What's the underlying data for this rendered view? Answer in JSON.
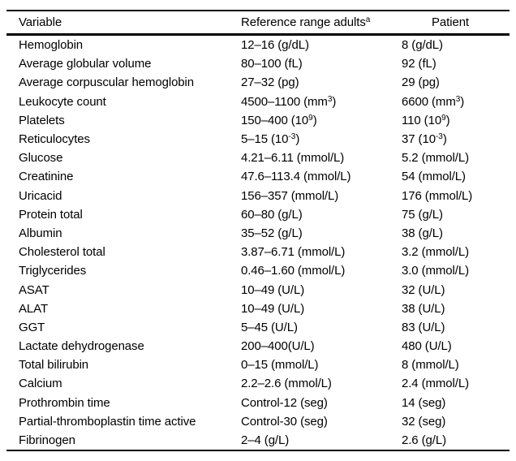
{
  "page": {
    "background_color": "#ffffff",
    "text_color": "#000000",
    "rule_color": "#000000"
  },
  "table": {
    "header": {
      "variable": "Variable",
      "reference": "Reference range adults",
      "reference_superscript": "a",
      "patient": "Patient"
    },
    "rows": [
      {
        "variable": "Hemoglobin",
        "reference": "12–16 (g/dL)",
        "patient": "8 (g/dL)"
      },
      {
        "variable": "Average globular volume",
        "reference": "80–100 (fL)",
        "patient": "92 (fL)"
      },
      {
        "variable": "Average corpuscular hemoglobin",
        "reference": "27–32 (pg)",
        "patient": "29 (pg)"
      },
      {
        "variable": "Leukocyte count",
        "reference": "4500–1100 (mm^{3})",
        "patient": "6600 (mm^{3})"
      },
      {
        "variable": "Platelets",
        "reference": "150–400 (10^{9})",
        "patient": "110 (10^{9})"
      },
      {
        "variable": "Reticulocytes",
        "reference": "5–15 (10^{-3})",
        "patient": "37 (10^{-3})"
      },
      {
        "variable": "Glucose",
        "reference": "4.21–6.11 (mmol/L)",
        "patient": "5.2 (mmol/L)"
      },
      {
        "variable": "Creatinine",
        "reference": "47.6–113.4 (mmol/L)",
        "patient": "54 (mmol/L)"
      },
      {
        "variable": "Uricacid",
        "reference": "156–357 (mmol/L)",
        "patient": "176 (mmol/L)"
      },
      {
        "variable": "Protein total",
        "reference": "60–80 (g/L)",
        "patient": "75 (g/L)"
      },
      {
        "variable": "Albumin",
        "reference": "35–52 (g/L)",
        "patient": "38 (g/L)"
      },
      {
        "variable": "Cholesterol total",
        "reference": "3.87–6.71 (mmol/L)",
        "patient": "3.2 (mmol/L)"
      },
      {
        "variable": "Triglycerides",
        "reference": "0.46–1.60 (mmol/L)",
        "patient": "3.0 (mmol/L)"
      },
      {
        "variable": "ASAT",
        "reference": "10–49 (U/L)",
        "patient": "32 (U/L)"
      },
      {
        "variable": "ALAT",
        "reference": "10–49 (U/L)",
        "patient": "38 (U/L)"
      },
      {
        "variable": "GGT",
        "reference": "5–45 (U/L)",
        "patient": "83 (U/L)"
      },
      {
        "variable": "Lactate dehydrogenase",
        "reference": "200–400(U/L)",
        "patient": "480 (U/L)"
      },
      {
        "variable": "Total bilirubin",
        "reference": "0–15 (mmol/L)",
        "patient": "8 (mmol/L)"
      },
      {
        "variable": "Calcium",
        "reference": "2.2–2.6 (mmol/L)",
        "patient": "2.4 (mmol/L)"
      },
      {
        "variable": "Prothrombin time",
        "reference": "Control-12 (seg)",
        "patient": "14 (seg)"
      },
      {
        "variable": "Partial-thromboplastin time active",
        "reference": "Control-30 (seg)",
        "patient": "32 (seg)"
      },
      {
        "variable": "Fibrinogen",
        "reference": "2–4 (g/L)",
        "patient": "2.6 (g/L)"
      }
    ]
  }
}
